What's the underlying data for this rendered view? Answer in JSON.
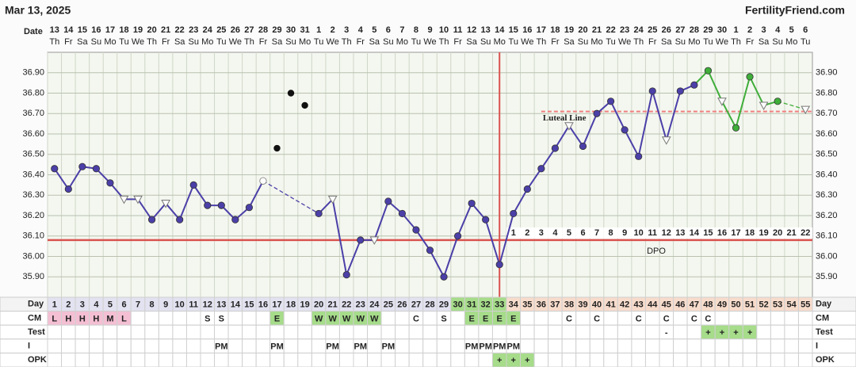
{
  "header": {
    "date": "Mar 13, 2025",
    "site": "FertilityFriend.com"
  },
  "chart_data": {
    "type": "line",
    "row_labels": {
      "date": "Date",
      "day": "Day",
      "cm": "CM",
      "test": "Test",
      "i": "I",
      "opk": "OPK"
    },
    "dates": [
      13,
      14,
      15,
      16,
      17,
      18,
      19,
      20,
      21,
      22,
      23,
      24,
      25,
      26,
      27,
      28,
      29,
      30,
      31,
      1,
      2,
      3,
      4,
      5,
      6,
      7,
      8,
      9,
      10,
      11,
      12,
      13,
      14,
      15,
      16,
      17,
      18,
      19,
      20,
      21,
      22,
      23,
      24,
      25,
      26,
      27,
      28,
      29,
      30,
      1,
      2,
      3,
      4,
      5,
      6
    ],
    "weekdays": [
      "Th",
      "Fr",
      "Sa",
      "Su",
      "Mo",
      "Tu",
      "We",
      "Th",
      "Fr",
      "Sa",
      "Su",
      "Mo",
      "Tu",
      "We",
      "Th",
      "Fr",
      "Sa",
      "Su",
      "Mo",
      "Tu",
      "We",
      "Th",
      "Fr",
      "Sa",
      "Su",
      "Mo",
      "Tu",
      "We",
      "Th",
      "Fr",
      "Sa",
      "Su",
      "Mo",
      "Tu",
      "We",
      "Th",
      "Fr",
      "Sa",
      "Su",
      "Mo",
      "Tu",
      "We",
      "Th",
      "Fr",
      "Sa",
      "Su",
      "Mo",
      "Tu",
      "We",
      "Th",
      "Fr",
      "Sa",
      "Su",
      "Mo",
      "Tu"
    ],
    "categories": [
      1,
      2,
      3,
      4,
      5,
      6,
      7,
      8,
      9,
      10,
      11,
      12,
      13,
      14,
      15,
      16,
      17,
      18,
      19,
      20,
      21,
      22,
      23,
      24,
      25,
      26,
      27,
      28,
      29,
      30,
      31,
      32,
      33,
      34,
      35,
      36,
      37,
      38,
      39,
      40,
      41,
      42,
      43,
      44,
      45,
      46,
      47,
      48,
      49,
      50,
      51,
      52,
      53,
      54,
      55
    ],
    "values": [
      36.43,
      36.33,
      36.44,
      36.43,
      36.36,
      36.28,
      36.28,
      36.18,
      36.26,
      36.18,
      36.35,
      36.25,
      36.25,
      36.18,
      36.24,
      36.37,
      null,
      null,
      null,
      36.21,
      36.28,
      35.91,
      36.08,
      36.08,
      36.27,
      36.21,
      36.13,
      36.03,
      35.9,
      36.1,
      36.26,
      36.18,
      35.96,
      36.21,
      36.33,
      36.43,
      36.53,
      36.64,
      36.54,
      36.7,
      36.76,
      36.62,
      36.49,
      36.81,
      36.57,
      36.81,
      36.84,
      36.91,
      36.76,
      36.63,
      36.88,
      36.74,
      36.76,
      null,
      36.72
    ],
    "markers": [
      "c",
      "c",
      "c",
      "c",
      "c",
      "t",
      "t",
      "c",
      "t",
      "c",
      "c",
      "c",
      "c",
      "c",
      "c",
      "o",
      null,
      null,
      null,
      "c",
      "t",
      "c",
      "c",
      "t",
      "c",
      "c",
      "c",
      "c",
      "c",
      "c",
      "c",
      "c",
      "c",
      "c",
      "c",
      "c",
      "c",
      "t",
      "c",
      "c",
      "c",
      "c",
      "c",
      "c",
      "t",
      "c",
      "c",
      "c",
      "t",
      "c",
      "c",
      "t",
      "c",
      null,
      "t"
    ],
    "point_colors": [
      "#4b3fa8",
      "#4b3fa8",
      "#4b3fa8",
      "#4b3fa8",
      "#4b3fa8",
      "#4b3fa8",
      "#4b3fa8",
      "#4b3fa8",
      "#4b3fa8",
      "#4b3fa8",
      "#4b3fa8",
      "#4b3fa8",
      "#4b3fa8",
      "#4b3fa8",
      "#4b3fa8",
      "#4b3fa8",
      null,
      null,
      null,
      "#4b3fa8",
      "#4b3fa8",
      "#4b3fa8",
      "#4b3fa8",
      "#4b3fa8",
      "#4b3fa8",
      "#4b3fa8",
      "#4b3fa8",
      "#4b3fa8",
      "#4b3fa8",
      "#4b3fa8",
      "#4b3fa8",
      "#4b3fa8",
      "#4b3fa8",
      "#4b3fa8",
      "#4b3fa8",
      "#4b3fa8",
      "#4b3fa8",
      "#4b3fa8",
      "#4b3fa8",
      "#4b3fa8",
      "#4b3fa8",
      "#4b3fa8",
      "#4b3fa8",
      "#4b3fa8",
      "#4b3fa8",
      "#4b3fa8",
      "#4b3fa8",
      "#3fae3a",
      "#3fae3a",
      "#3fae3a",
      "#3fae3a",
      "#3fae3a",
      "#3fae3a",
      null,
      "#3fae3a"
    ],
    "discarded": [
      null,
      null,
      null,
      null,
      null,
      null,
      null,
      null,
      null,
      null,
      null,
      null,
      null,
      null,
      null,
      null,
      36.53,
      36.8,
      36.74,
      null,
      null,
      null,
      null,
      null,
      null,
      null,
      null,
      null,
      null,
      null,
      null,
      null,
      null,
      null,
      null,
      null,
      null,
      null,
      null,
      null,
      null,
      null,
      null,
      null,
      null,
      null,
      null,
      null,
      null,
      null,
      null,
      null,
      null,
      null,
      null
    ],
    "coverline": 36.08,
    "ovulation_index": 32,
    "dpo": [
      1,
      2,
      3,
      4,
      5,
      6,
      7,
      8,
      9,
      10,
      11,
      12,
      13,
      14,
      15,
      16,
      17,
      18,
      19,
      20,
      21,
      22
    ],
    "dpo_label": "DPO",
    "luteal": {
      "label": "Luteal Line",
      "value": 36.71
    },
    "ylim": [
      35.8,
      37.0
    ],
    "yticks": [
      {
        "value": 35.9,
        "label": "35.90"
      },
      {
        "value": 36.0,
        "label": "36.00"
      },
      {
        "value": 36.1,
        "label": "36.10"
      },
      {
        "value": 36.2,
        "label": "36.20"
      },
      {
        "value": 36.3,
        "label": "36.30"
      },
      {
        "value": 36.4,
        "label": "36.40"
      },
      {
        "value": 36.5,
        "label": "36.50"
      },
      {
        "value": 36.6,
        "label": "36.60"
      },
      {
        "value": 36.7,
        "label": "36.70"
      },
      {
        "value": 36.8,
        "label": "36.80"
      },
      {
        "value": 36.9,
        "label": "36.90"
      }
    ],
    "day_colors": [
      "#e2e2f0",
      "#e2e2f0",
      "#e2e2f0",
      "#e2e2f0",
      "#e2e2f0",
      "#e2e2f0",
      "#e2e2f0",
      "#e2e2f0",
      "#e2e2f0",
      "#e2e2f0",
      "#e2e2f0",
      "#e2e2f0",
      "#e2e2f0",
      "#e2e2f0",
      "#e2e2f0",
      "#e2e2f0",
      "#e2e2f0",
      "#e2e2f0",
      "#e2e2f0",
      "#e2e2f0",
      "#e2e2f0",
      "#e2e2f0",
      "#e2e2f0",
      "#e2e2f0",
      "#e2e2f0",
      "#e2e2f0",
      "#e2e2f0",
      "#e2e2f0",
      "#e2e2f0",
      "#a6dc8a",
      "#a6dc8a",
      "#a6dc8a",
      "#a6dc8a",
      "#f7dccc",
      "#f7dccc",
      "#f7dccc",
      "#f7dccc",
      "#f7dccc",
      "#f7dccc",
      "#f7dccc",
      "#f7dccc",
      "#f7dccc",
      "#f7dccc",
      "#f7dccc",
      "#f7dccc",
      "#f7dccc",
      "#f7dccc",
      "#f7dccc",
      "#f7dccc",
      "#f7dccc",
      "#f7dccc",
      "#f7dccc",
      "#f7dccc",
      "#f7dccc",
      "#f7dccc"
    ],
    "cell_colors": {
      "L": "#f4bfd3",
      "H": "#f4bfd3",
      "M": "#f4bfd3",
      "E": "#a6dc8a",
      "W": "#a6dc8a",
      "+": "#a6dc8a"
    },
    "cm": [
      "L",
      "H",
      "H",
      "H",
      "M",
      "L",
      null,
      null,
      null,
      null,
      null,
      "S",
      "S",
      null,
      null,
      null,
      "E",
      null,
      null,
      "W",
      "W",
      "W",
      "W",
      "W",
      null,
      null,
      "C",
      null,
      "S",
      null,
      "E",
      "E",
      "E",
      "E",
      null,
      null,
      null,
      "C",
      null,
      "C",
      null,
      null,
      "C",
      null,
      "C",
      null,
      "C",
      "C",
      null,
      null,
      null,
      null,
      null,
      null,
      null
    ],
    "test": [
      null,
      null,
      null,
      null,
      null,
      null,
      null,
      null,
      null,
      null,
      null,
      null,
      null,
      null,
      null,
      null,
      null,
      null,
      null,
      null,
      null,
      null,
      null,
      null,
      null,
      null,
      null,
      null,
      null,
      null,
      null,
      null,
      null,
      null,
      null,
      null,
      null,
      null,
      null,
      null,
      null,
      null,
      null,
      null,
      "-",
      null,
      null,
      "+",
      "+",
      "+",
      "+",
      null,
      null,
      null,
      null
    ],
    "intercourse": [
      null,
      null,
      null,
      null,
      null,
      null,
      null,
      null,
      null,
      null,
      null,
      null,
      "PM",
      null,
      null,
      null,
      "PM",
      null,
      null,
      null,
      "PM",
      null,
      "PM",
      null,
      "PM",
      null,
      null,
      null,
      null,
      null,
      "PM",
      "PM",
      "PM",
      "PM",
      null,
      null,
      null,
      null,
      null,
      null,
      null,
      null,
      null,
      null,
      null,
      null,
      null,
      null,
      null,
      null,
      null,
      null,
      null,
      null,
      null
    ],
    "opk": [
      null,
      null,
      null,
      null,
      null,
      null,
      null,
      null,
      null,
      null,
      null,
      null,
      null,
      null,
      null,
      null,
      null,
      null,
      null,
      null,
      null,
      null,
      null,
      null,
      null,
      null,
      null,
      null,
      null,
      null,
      null,
      null,
      "+",
      "+",
      "+",
      null,
      null,
      null,
      null,
      null,
      null,
      null,
      null,
      null,
      null,
      null,
      null,
      null,
      null,
      null,
      null,
      null,
      null,
      null,
      null
    ]
  }
}
